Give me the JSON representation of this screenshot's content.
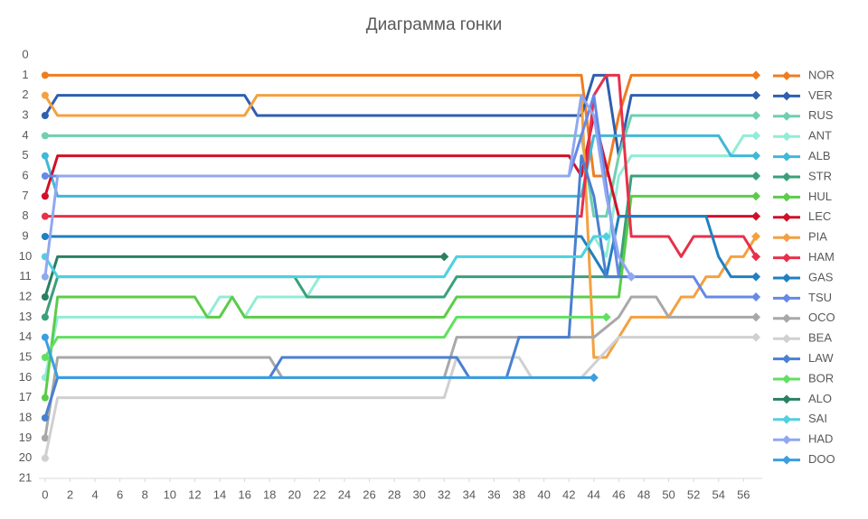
{
  "chart_data": {
    "type": "line",
    "title": "Диаграмма гонки",
    "xlim": [
      -0.5,
      57.5
    ],
    "xticks": [
      0,
      2,
      4,
      6,
      8,
      10,
      12,
      14,
      16,
      18,
      20,
      22,
      24,
      26,
      28,
      30,
      32,
      34,
      36,
      38,
      40,
      42,
      44,
      46,
      48,
      50,
      52,
      54,
      56
    ],
    "ylim": [
      21,
      0
    ],
    "yticks": [
      0,
      1,
      2,
      3,
      4,
      5,
      6,
      7,
      8,
      9,
      10,
      11,
      12,
      13,
      14,
      15,
      16,
      17,
      18,
      19,
      20,
      21
    ],
    "legend": "right",
    "series": [
      {
        "name": "NOR",
        "color": "#ee7d22",
        "x": [
          0,
          43,
          44,
          45,
          46,
          47,
          57
        ],
        "values": [
          1,
          1,
          6,
          6,
          3,
          1,
          1
        ]
      },
      {
        "name": "VER",
        "color": "#2e5fb0",
        "x": [
          0,
          1,
          16,
          17,
          43,
          44,
          45,
          46,
          47,
          57
        ],
        "values": [
          3,
          2,
          2,
          3,
          3,
          1,
          1,
          5,
          2,
          2
        ]
      },
      {
        "name": "RUS",
        "color": "#6fcfb0",
        "x": [
          0,
          43,
          44,
          45,
          46,
          47,
          57
        ],
        "values": [
          4,
          4,
          8,
          8,
          5,
          3,
          3
        ]
      },
      {
        "name": "ANT",
        "color": "#92ecd6",
        "x": [
          0,
          1,
          13,
          14,
          15,
          16,
          17,
          21,
          22,
          32,
          33,
          43,
          44,
          45,
          46,
          47,
          55,
          56,
          57
        ],
        "values": [
          16,
          13,
          13,
          12,
          12,
          13,
          12,
          12,
          11,
          11,
          10,
          10,
          9,
          10,
          6,
          5,
          5,
          4,
          4
        ]
      },
      {
        "name": "ALB",
        "color": "#40b8d8",
        "x": [
          0,
          1,
          43,
          44,
          54,
          55,
          57
        ],
        "values": [
          5,
          7,
          7,
          4,
          4,
          5,
          5
        ]
      },
      {
        "name": "STR",
        "color": "#3aa07a",
        "x": [
          0,
          1,
          20,
          21,
          32,
          33,
          46,
          47,
          57
        ],
        "values": [
          13,
          11,
          11,
          12,
          12,
          11,
          11,
          6,
          6
        ]
      },
      {
        "name": "HUL",
        "color": "#5ccc4a",
        "x": [
          0,
          1,
          12,
          13,
          14,
          15,
          16,
          32,
          33,
          46,
          47,
          57
        ],
        "values": [
          17,
          12,
          12,
          13,
          13,
          12,
          13,
          13,
          12,
          12,
          7,
          7
        ]
      },
      {
        "name": "LEC",
        "color": "#d0102a",
        "x": [
          0,
          1,
          42,
          43,
          44,
          46,
          47,
          57
        ],
        "values": [
          7,
          5,
          5,
          6,
          3,
          8,
          8,
          8
        ]
      },
      {
        "name": "PIA",
        "color": "#f4a040",
        "x": [
          0,
          1,
          16,
          17,
          43,
          44,
          45,
          47,
          50,
          51,
          52,
          53,
          54,
          55,
          56,
          57
        ],
        "values": [
          2,
          3,
          3,
          2,
          2,
          15,
          15,
          13,
          13,
          12,
          12,
          11,
          11,
          10,
          10,
          9
        ]
      },
      {
        "name": "HAM",
        "color": "#e8304a",
        "x": [
          0,
          43,
          44,
          45,
          46,
          47,
          50,
          51,
          52,
          56,
          57
        ],
        "values": [
          8,
          8,
          2,
          1,
          1,
          9,
          9,
          10,
          9,
          9,
          10
        ]
      },
      {
        "name": "GAS",
        "color": "#2080c0",
        "x": [
          0,
          43,
          44,
          45,
          46,
          53,
          54,
          55,
          57
        ],
        "values": [
          9,
          9,
          10,
          11,
          8,
          8,
          10,
          11,
          11
        ]
      },
      {
        "name": "TSU",
        "color": "#6688e8",
        "x": [
          0,
          42,
          43,
          44,
          46,
          52,
          53,
          57
        ],
        "values": [
          6,
          6,
          4,
          2,
          11,
          11,
          12,
          12
        ]
      },
      {
        "name": "OCO",
        "color": "#a8a8a8",
        "x": [
          0,
          1,
          18,
          19,
          32,
          33,
          44,
          46,
          47,
          49,
          50,
          57
        ],
        "values": [
          19,
          15,
          15,
          16,
          16,
          14,
          14,
          13,
          12,
          12,
          13,
          13
        ]
      },
      {
        "name": "BEA",
        "color": "#d0d0d0",
        "x": [
          0,
          1,
          32,
          33,
          38,
          39,
          43,
          46,
          57
        ],
        "values": [
          20,
          17,
          17,
          15,
          15,
          16,
          16,
          14,
          14
        ]
      },
      {
        "name": "LAW",
        "color": "#4a80d0",
        "x": [
          0,
          1,
          18,
          19,
          33,
          34,
          37,
          38,
          42,
          43,
          44,
          45,
          47
        ],
        "values": [
          18,
          16,
          16,
          15,
          15,
          16,
          16,
          14,
          14,
          5,
          7,
          11,
          11
        ]
      },
      {
        "name": "BOR",
        "color": "#60e060",
        "x": [
          0,
          1,
          32,
          33,
          45
        ],
        "values": [
          15,
          14,
          14,
          13,
          13
        ]
      },
      {
        "name": "ALO",
        "color": "#2a8060",
        "x": [
          0,
          1,
          32
        ],
        "values": [
          12,
          10,
          10
        ]
      },
      {
        "name": "SAI",
        "color": "#50d0e0",
        "x": [
          0,
          1,
          32,
          33,
          43,
          44,
          45
        ],
        "values": [
          10,
          11,
          11,
          10,
          10,
          9,
          9
        ]
      },
      {
        "name": "HAD",
        "color": "#90a8f0",
        "x": [
          0,
          1,
          42,
          43,
          44,
          45,
          46,
          47
        ],
        "values": [
          11,
          6,
          6,
          2,
          3,
          7,
          10,
          11
        ]
      },
      {
        "name": "DOO",
        "color": "#3a9ee0",
        "x": [
          0,
          1,
          44
        ],
        "values": [
          14,
          16,
          16
        ]
      }
    ]
  }
}
